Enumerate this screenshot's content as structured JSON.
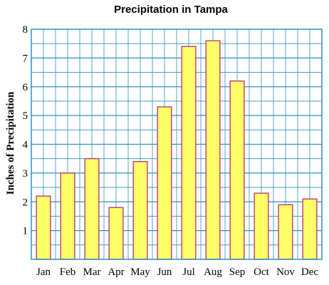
{
  "chart_data": {
    "type": "bar",
    "title": "Precipitation in Tampa",
    "xlabel": "",
    "ylabel": "Inches of Precipitation",
    "categories": [
      "Jan",
      "Feb",
      "Mar",
      "Apr",
      "May",
      "Jun",
      "Jul",
      "Aug",
      "Sep",
      "Oct",
      "Nov",
      "Dec"
    ],
    "values": [
      2.2,
      3.0,
      3.5,
      1.8,
      3.4,
      5.3,
      7.4,
      7.6,
      6.2,
      2.3,
      1.9,
      2.1
    ],
    "ylim": [
      0,
      8
    ],
    "yticks": [
      "1",
      "2",
      "3",
      "4",
      "5",
      "6",
      "7",
      "8"
    ],
    "grid": true,
    "legend": "none",
    "colors": {
      "bar_fill": "#ffff66",
      "bar_stroke": "#b0307a",
      "grid": "#2e8fbf",
      "frame": "#2e8fbf"
    }
  }
}
